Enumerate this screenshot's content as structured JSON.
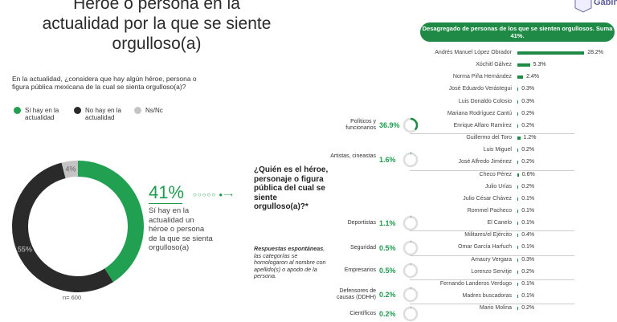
{
  "title": "Héroe o persona en la actualidad por la que se siente orgulloso(a)",
  "logo_text": "Gabinete",
  "question": "En la actualidad, ¿considera que hay algún héroe, persona o figura pública mexicana de la cual se sienta orgulloso(a)?",
  "highlight": {
    "value": "41%",
    "description": "Sí hay en la actualidad un héroe o persona de la que se sienta orgulloso(a)"
  },
  "followup": {
    "question": "¿Quién es el héroe, personaje o figura pública del cual se siente orgulloso(a)?*",
    "note_bold": "Respuestas espontáneas",
    "note": ", las categorías se homologaron al nombre con apellido(s) o apodo de la persona."
  },
  "sample": "n= 600",
  "colors": {
    "green": "#22a052",
    "dark": "#2a2a2a",
    "gray": "#c4c4c4",
    "bar": "#1f8a45"
  },
  "chart_data": [
    {
      "type": "pie",
      "donut": true,
      "legend": [
        "Sí hay en la actualidad",
        "No hay en la actualidad",
        "Ns/Nc"
      ],
      "slices": [
        {
          "label": "Sí hay en la actualidad",
          "value": 41,
          "text": ""
        },
        {
          "label": "No hay en la actualidad",
          "value": 55,
          "text": "55%"
        },
        {
          "label": "Ns/Nc",
          "value": 4,
          "text": "4%"
        }
      ]
    },
    {
      "type": "bar",
      "orientation": "horizontal",
      "title": "Desagregado de personas de los que se sienten orgullosos. Suma 41%.",
      "categories": [
        "Andrés Manuel López Obrador",
        "Xóchitl Gálvez",
        "Norma Piña Hernández",
        "José Eduardo Verástegui",
        "Luis Donaldo Colosio",
        "Mariana Rodríguez Cantú",
        "Enrique Alfaro Ramírez",
        "Guillermo del Toro",
        "Luis Miguel",
        "José Alfredo Jiménez",
        "Checo Pérez",
        "Julio Urías",
        "Julio César Chávez",
        "Rommel Pacheco",
        "El Canelo",
        "Militares/el Ejército",
        "Omar García Harfuch",
        "Amaury Vergara",
        "Lorenzo Servitje",
        "Fernando Landeros Verdugo",
        "Madres buscadoras",
        "Mario Molina"
      ],
      "values": [
        28.2,
        5.3,
        2.4,
        0.3,
        0.3,
        0.2,
        0.2,
        1.2,
        0.2,
        0.2,
        0.6,
        0.2,
        0.1,
        0.1,
        0.1,
        0.4,
        0.1,
        0.3,
        0.2,
        0.1,
        0.1,
        0.2
      ],
      "labels": [
        "28.2%",
        "5.3%",
        "2.4%",
        "0.3%",
        "0.3%",
        "0.2%",
        "0.2%",
        "1.2%",
        "0.2%",
        "0.2%",
        "0.6%",
        "0.2%",
        "0.1%",
        "0.1%",
        "0.1%",
        "0.4%",
        "0.1%",
        "0.3%",
        "0.2%",
        "0.1%",
        "0.1%",
        "0.2%"
      ]
    },
    {
      "type": "pie",
      "groups": [
        {
          "label": "Políticos y funcionarios",
          "value": 36.9,
          "text": "36.9%"
        },
        {
          "label": "Artistas, cineastas",
          "value": 1.6,
          "text": "1.6%"
        },
        {
          "label": "Deportistas",
          "value": 1.1,
          "text": "1.1%"
        },
        {
          "label": "Seguridad",
          "value": 0.5,
          "text": "0.5%"
        },
        {
          "label": "Empresarios",
          "value": 0.5,
          "text": "0.5%"
        },
        {
          "label": "Defensores de causas (DDHH)",
          "value": 0.2,
          "text": "0.2%"
        },
        {
          "label": "Científicos",
          "value": 0.2,
          "text": "0.2%"
        }
      ]
    }
  ]
}
